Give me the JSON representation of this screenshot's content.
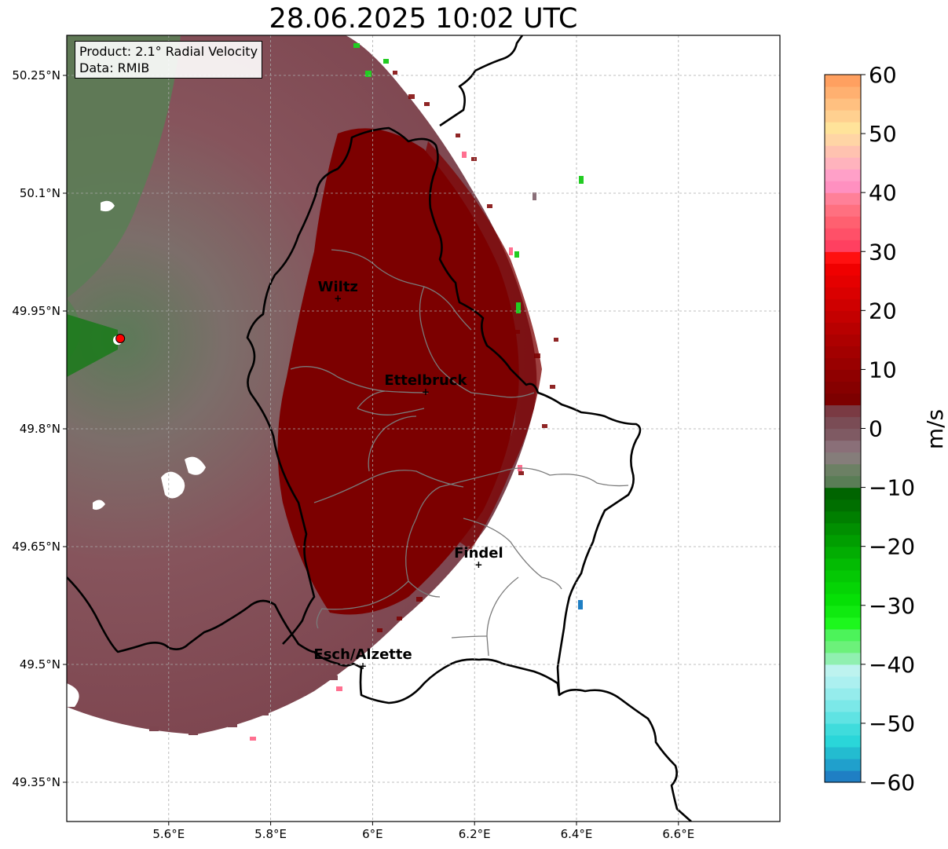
{
  "title": "28.06.2025 10:02 UTC",
  "info_box": {
    "product": "Product: 2.1° Radial Velocity",
    "source": "Data: RMIB"
  },
  "map": {
    "lon_range": [
      5.4,
      6.8
    ],
    "lat_range": [
      49.3,
      50.3
    ],
    "lon_ticks": [
      {
        "value": 5.6,
        "label": "5.6°E"
      },
      {
        "value": 5.8,
        "label": "5.8°E"
      },
      {
        "value": 6.0,
        "label": "6°E"
      },
      {
        "value": 6.2,
        "label": "6.2°E"
      },
      {
        "value": 6.4,
        "label": "6.4°E"
      },
      {
        "value": 6.6,
        "label": "6.6°E"
      }
    ],
    "lat_ticks": [
      {
        "value": 50.25,
        "label": "50.25°N"
      },
      {
        "value": 50.1,
        "label": "50.1°N"
      },
      {
        "value": 49.95,
        "label": "49.95°N"
      },
      {
        "value": 49.8,
        "label": "49.8°N"
      },
      {
        "value": 49.65,
        "label": "49.65°N"
      },
      {
        "value": 49.5,
        "label": "49.5°N"
      },
      {
        "value": 49.35,
        "label": "49.35°N"
      }
    ],
    "grid": true,
    "radar_site": {
      "lon": 5.505,
      "lat": 49.915,
      "color": "#ff0000"
    },
    "cities": [
      {
        "name": "Wiltz",
        "lon": 5.932,
        "lat": 49.966
      },
      {
        "name": "Ettelbruck",
        "lon": 6.104,
        "lat": 49.847
      },
      {
        "name": "Findel",
        "lon": 6.208,
        "lat": 49.627
      },
      {
        "name": "Esch/Alzette",
        "lon": 5.981,
        "lat": 49.498
      }
    ]
  },
  "colorbar": {
    "label": "m/s",
    "vmin": -60,
    "vmax": 60,
    "ticks": [
      60,
      50,
      40,
      30,
      20,
      10,
      0,
      -10,
      -20,
      -30,
      -40,
      -50,
      -60
    ],
    "tick_labels": [
      "60",
      "50",
      "40",
      "30",
      "20",
      "10",
      "0",
      "−10",
      "−20",
      "−30",
      "−40",
      "−50",
      "−60"
    ],
    "colors_bottom_to_top": [
      "#1f7fc4",
      "#20a0cc",
      "#23bcd0",
      "#2ad6d9",
      "#3fdcdc",
      "#5fe3e3",
      "#7be8e8",
      "#95ecec",
      "#acf0f0",
      "#bdf3ef",
      "#90f0b0",
      "#6cf17a",
      "#4cf35a",
      "#1df71d",
      "#10ea10",
      "#06e006",
      "#05d405",
      "#04c804",
      "#03bb03",
      "#02ad02",
      "#019e01",
      "#018f01",
      "#007f00",
      "#006f00",
      "#006400",
      "#5a7d56",
      "#6c8064",
      "#857d7a",
      "#8a6f78",
      "#7f5a63",
      "#7a4c55",
      "#7a3a43",
      "#7d0000",
      "#860000",
      "#8f0000",
      "#990000",
      "#a30000",
      "#ad0000",
      "#b80000",
      "#c40000",
      "#cf0000",
      "#da0000",
      "#e50000",
      "#f00000",
      "#ff1010",
      "#ff4060",
      "#ff5068",
      "#ff6070",
      "#ff7080",
      "#ff8098",
      "#ff90c0",
      "#ffa0c8",
      "#ffb3bd",
      "#ffc2b0",
      "#ffd5a5",
      "#ffe39a",
      "#ffd090",
      "#ffc080",
      "#ffb070",
      "#ffa060"
    ]
  }
}
